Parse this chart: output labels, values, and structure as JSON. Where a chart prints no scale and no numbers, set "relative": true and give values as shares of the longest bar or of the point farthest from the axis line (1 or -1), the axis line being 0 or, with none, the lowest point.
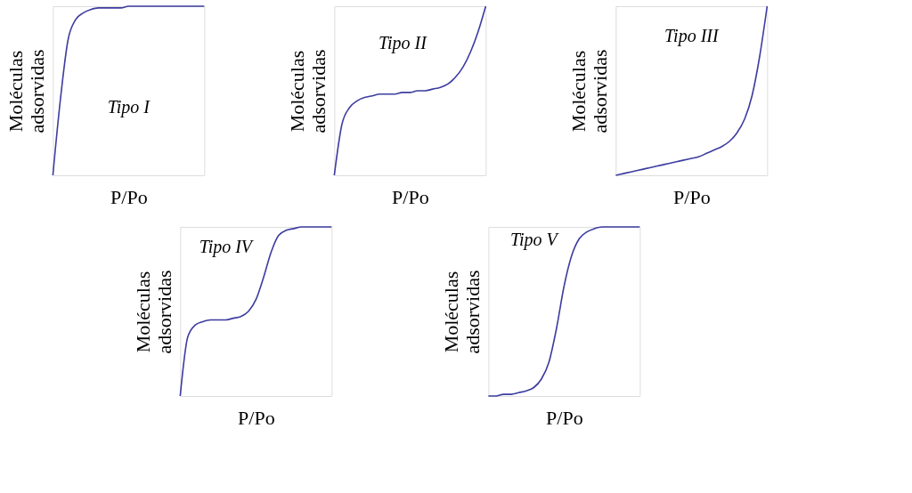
{
  "chart_data": [
    {
      "type": "line",
      "relative": true,
      "tick_labels": false,
      "grid": false,
      "xlabel": "P/Po",
      "ylabel": "Moléculas adsorvidas",
      "annotations": [
        "Tipo I"
      ],
      "categories": [
        null,
        null,
        null,
        null,
        null,
        null,
        null,
        null,
        null,
        null,
        null,
        null,
        null,
        null,
        null,
        null,
        null,
        null,
        null,
        null,
        null
      ],
      "series": [
        {
          "color": "#3c3ca0",
          "values": [
            0,
            0.45,
            0.8,
            0.92,
            0.96,
            0.98,
            0.99,
            0.99,
            0.99,
            0.99,
            1,
            1,
            1,
            1,
            1,
            1,
            1,
            1,
            1,
            1,
            1
          ]
        }
      ]
    },
    {
      "type": "line",
      "relative": true,
      "tick_labels": false,
      "grid": false,
      "xlabel": "P/Po",
      "ylabel": "Moléculas adsorvidas",
      "annotations": [
        "Tipo II"
      ],
      "categories": [
        null,
        null,
        null,
        null,
        null,
        null,
        null,
        null,
        null,
        null,
        null,
        null,
        null,
        null,
        null,
        null,
        null,
        null,
        null,
        null,
        null
      ],
      "series": [
        {
          "color": "#3c3ca0",
          "values": [
            0,
            0.3,
            0.4,
            0.44,
            0.46,
            0.47,
            0.48,
            0.48,
            0.48,
            0.49,
            0.49,
            0.5,
            0.5,
            0.51,
            0.52,
            0.54,
            0.58,
            0.64,
            0.73,
            0.85,
            1
          ]
        }
      ]
    },
    {
      "type": "line",
      "relative": true,
      "tick_labels": false,
      "grid": false,
      "xlabel": "P/Po",
      "ylabel": "Moléculas adsorvidas",
      "annotations": [
        "Tipo III"
      ],
      "categories": [
        null,
        null,
        null,
        null,
        null,
        null,
        null,
        null,
        null,
        null,
        null,
        null,
        null,
        null,
        null,
        null,
        null,
        null,
        null,
        null,
        null
      ],
      "series": [
        {
          "color": "#3c3ca0",
          "values": [
            0,
            0.01,
            0.02,
            0.03,
            0.04,
            0.05,
            0.06,
            0.07,
            0.08,
            0.09,
            0.1,
            0.11,
            0.13,
            0.15,
            0.17,
            0.2,
            0.25,
            0.33,
            0.47,
            0.7,
            1
          ]
        }
      ]
    },
    {
      "type": "line",
      "relative": true,
      "tick_labels": false,
      "grid": false,
      "xlabel": "P/Po",
      "ylabel": "Moléculas adsorvidas",
      "annotations": [
        "Tipo IV"
      ],
      "categories": [
        null,
        null,
        null,
        null,
        null,
        null,
        null,
        null,
        null,
        null,
        null,
        null,
        null,
        null,
        null,
        null,
        null,
        null,
        null,
        null,
        null
      ],
      "series": [
        {
          "color": "#3c3ca0",
          "values": [
            0,
            0.35,
            0.42,
            0.44,
            0.45,
            0.45,
            0.45,
            0.46,
            0.47,
            0.5,
            0.57,
            0.7,
            0.85,
            0.95,
            0.98,
            0.99,
            1,
            1,
            1,
            1,
            1
          ]
        }
      ]
    },
    {
      "type": "line",
      "relative": true,
      "tick_labels": false,
      "grid": false,
      "xlabel": "P/Po",
      "ylabel": "Moléculas adsorvidas",
      "annotations": [
        "Tipo V"
      ],
      "categories": [
        null,
        null,
        null,
        null,
        null,
        null,
        null,
        null,
        null,
        null,
        null,
        null,
        null,
        null,
        null,
        null,
        null,
        null,
        null,
        null,
        null
      ],
      "series": [
        {
          "color": "#3c3ca0",
          "values": [
            0,
            0,
            0.01,
            0.01,
            0.02,
            0.03,
            0.05,
            0.1,
            0.2,
            0.4,
            0.65,
            0.83,
            0.93,
            0.97,
            0.99,
            1,
            1,
            1,
            1,
            1,
            1
          ]
        }
      ]
    }
  ]
}
